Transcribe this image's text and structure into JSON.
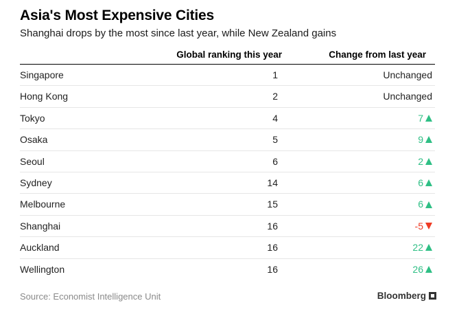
{
  "title": "Asia's Most Expensive Cities",
  "subtitle": "Shanghai drops by the most since last year, while New Zealand gains",
  "source": "Source: Economist Intelligence Unit",
  "brand": "Bloomberg",
  "colors": {
    "up": "#2fbf85",
    "down": "#ef3b24"
  },
  "chart_data": {
    "type": "table",
    "columns": [
      "",
      "Global ranking this year",
      "Change from last year"
    ],
    "rows": [
      {
        "city": "Singapore",
        "rank": 1,
        "change": "Unchanged",
        "direction": "none"
      },
      {
        "city": "Hong Kong",
        "rank": 2,
        "change": "Unchanged",
        "direction": "none"
      },
      {
        "city": "Tokyo",
        "rank": 4,
        "change": "7",
        "direction": "up"
      },
      {
        "city": "Osaka",
        "rank": 5,
        "change": "9",
        "direction": "up"
      },
      {
        "city": "Seoul",
        "rank": 6,
        "change": "2",
        "direction": "up"
      },
      {
        "city": "Sydney",
        "rank": 14,
        "change": "6",
        "direction": "up"
      },
      {
        "city": "Melbourne",
        "rank": 15,
        "change": "6",
        "direction": "up"
      },
      {
        "city": "Shanghai",
        "rank": 16,
        "change": "-5",
        "direction": "down"
      },
      {
        "city": "Auckland",
        "rank": 16,
        "change": "22",
        "direction": "up"
      },
      {
        "city": "Wellington",
        "rank": 16,
        "change": "26",
        "direction": "up"
      }
    ]
  }
}
